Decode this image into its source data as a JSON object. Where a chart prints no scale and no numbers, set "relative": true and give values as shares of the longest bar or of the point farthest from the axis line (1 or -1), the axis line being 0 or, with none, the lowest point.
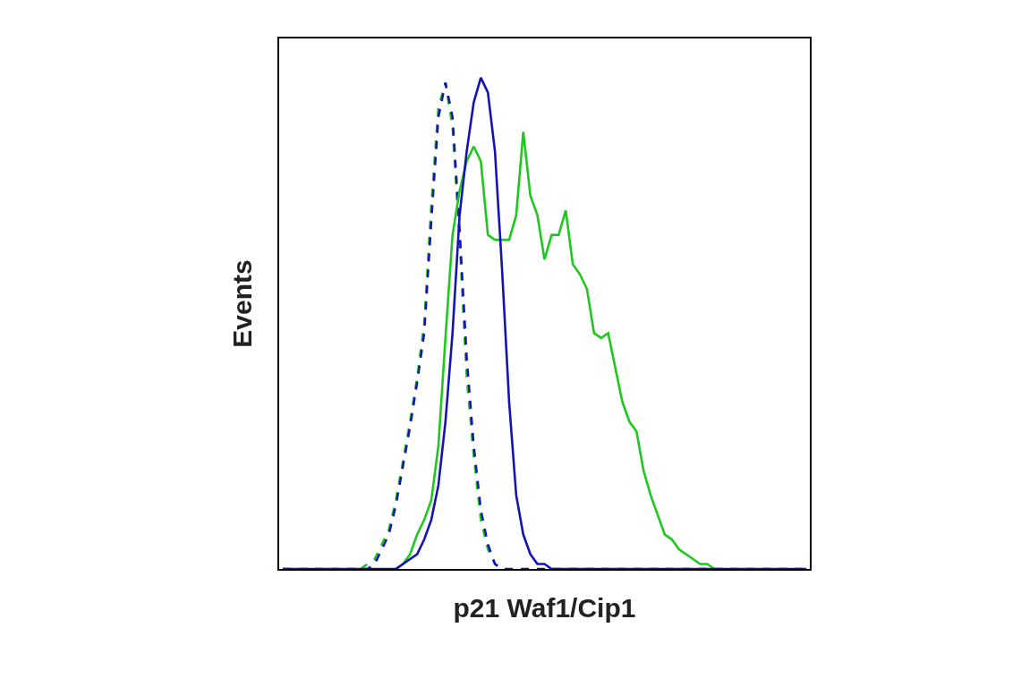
{
  "chart_data": {
    "type": "line",
    "relative": true,
    "xlabel": "p21 Waf1/Cip1",
    "ylabel": "Events",
    "marker": "none",
    "categories": [
      null,
      null,
      null,
      null,
      null,
      null,
      null,
      null,
      null,
      null,
      null,
      null,
      null,
      null,
      null,
      null,
      null,
      null,
      null,
      null,
      null,
      null,
      null,
      null,
      null,
      null,
      null,
      null,
      null,
      null,
      null,
      null,
      null,
      null,
      null,
      null,
      null,
      null,
      null,
      null,
      null,
      null,
      null,
      null,
      null,
      null,
      null,
      null,
      null,
      null,
      null,
      null,
      null,
      null,
      null,
      null,
      null,
      null,
      null,
      null,
      null,
      null,
      null,
      null,
      null,
      null,
      null,
      null,
      null,
      null,
      null,
      null,
      null,
      null,
      null
    ],
    "series": [
      {
        "color": "#1ec81e",
        "line_style": "dashed",
        "values": [
          null,
          null,
          null,
          null,
          null,
          null,
          null,
          null,
          null,
          null,
          null,
          0,
          0.01,
          0.02,
          0.05,
          0.08,
          0.14,
          0.22,
          0.3,
          0.39,
          0.5,
          0.74,
          0.94,
          0.99,
          0.9,
          0.67,
          0.39,
          0.23,
          0.1,
          0.04,
          0.01,
          0,
          null,
          null,
          null,
          null,
          null,
          null,
          null,
          null,
          null,
          null,
          null,
          null,
          null,
          null,
          null,
          null,
          null,
          null,
          null,
          null,
          null,
          null,
          null,
          null,
          null,
          null,
          null,
          null,
          null,
          null,
          null,
          null,
          null,
          null,
          null,
          null,
          null,
          null,
          null,
          null,
          null,
          null,
          null
        ]
      },
      {
        "color": "#1414b4",
        "line_style": "dashed",
        "values": [
          0,
          0,
          0,
          0,
          0,
          0,
          0,
          0,
          0,
          0,
          0,
          0,
          0,
          0.01,
          0.04,
          0.07,
          0.13,
          0.21,
          0.29,
          0.38,
          0.48,
          0.71,
          0.92,
          0.99,
          0.92,
          0.69,
          0.43,
          0.25,
          0.12,
          0.05,
          0.01,
          0,
          0,
          0,
          0,
          0,
          0,
          0,
          0,
          0,
          0,
          0,
          0,
          0,
          0,
          0,
          0,
          0,
          0,
          0,
          0,
          0,
          0,
          0,
          0,
          0,
          0,
          0,
          0,
          0,
          0,
          0,
          0,
          0,
          0,
          0,
          0,
          0,
          0,
          0,
          0,
          0,
          0,
          0,
          0
        ]
      },
      {
        "color": "#1ec81e",
        "line_style": "solid",
        "values": [
          null,
          null,
          null,
          null,
          null,
          null,
          null,
          null,
          null,
          null,
          null,
          null,
          null,
          null,
          null,
          null,
          0,
          0.01,
          0.03,
          0.07,
          0.1,
          0.14,
          0.25,
          0.47,
          0.68,
          0.77,
          0.83,
          0.86,
          0.83,
          0.68,
          0.67,
          0.67,
          0.67,
          0.72,
          0.89,
          0.76,
          0.72,
          0.63,
          0.68,
          0.68,
          0.73,
          0.62,
          0.6,
          0.57,
          0.48,
          0.47,
          0.48,
          0.41,
          0.34,
          0.3,
          0.28,
          0.2,
          0.15,
          0.11,
          0.07,
          0.06,
          0.04,
          0.03,
          0.02,
          0.01,
          0.01,
          0,
          null,
          null,
          null,
          null,
          null,
          null,
          null,
          null,
          null,
          null,
          null,
          null,
          null
        ]
      },
      {
        "color": "#1414b4",
        "line_style": "solid",
        "values": [
          0,
          0,
          0,
          0,
          0,
          0,
          0,
          0,
          0,
          0,
          0,
          0,
          0,
          0,
          0,
          0,
          0,
          0.01,
          0.02,
          0.03,
          0.06,
          0.1,
          0.17,
          0.3,
          0.48,
          0.72,
          0.85,
          0.95,
          1,
          0.97,
          0.85,
          0.61,
          0.34,
          0.15,
          0.07,
          0.03,
          0.01,
          0.01,
          0,
          0,
          0,
          0,
          0,
          0,
          0,
          0,
          0,
          0,
          0,
          0,
          0,
          0,
          0,
          0,
          0,
          0,
          0,
          0,
          0,
          0,
          0,
          0,
          0,
          0,
          0,
          0,
          0,
          0,
          0,
          0,
          0,
          0,
          0,
          0,
          0
        ]
      }
    ]
  }
}
